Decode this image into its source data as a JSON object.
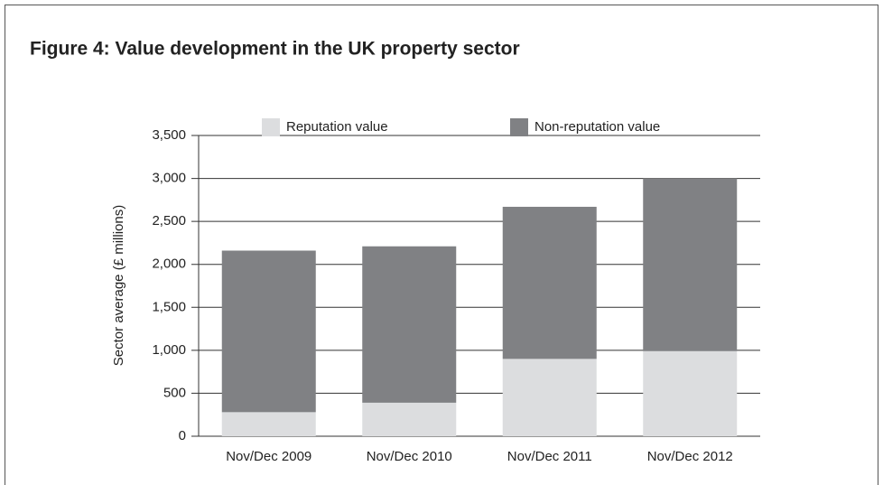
{
  "chart_data": {
    "type": "stacked_bar",
    "title": "Figure 4: Value development in the UK property sector",
    "y_label": "Sector average (£ millions)",
    "categories": [
      "Nov/Dec 2009",
      "Nov/Dec 2010",
      "Nov/Dec 2011",
      "Nov/Dec 2012"
    ],
    "series": [
      {
        "name": "Reputation value",
        "color": "#dcdddf",
        "values": [
          280,
          390,
          900,
          990
        ]
      },
      {
        "name": "Non-reputation value",
        "color": "#808184",
        "values": [
          1880,
          1820,
          1770,
          2010
        ]
      }
    ],
    "ylim": [
      0,
      3500
    ],
    "yticks": [
      0,
      500,
      {
        "value": 1000,
        "label": "1,000"
      },
      {
        "value": 1500,
        "label": "1,500"
      },
      {
        "value": 2000,
        "label": "2,000"
      },
      {
        "value": 2500,
        "label": "2,500"
      },
      {
        "value": 3000,
        "label": "3,000"
      },
      {
        "value": 3500,
        "label": "3,500"
      }
    ],
    "grid": true
  }
}
